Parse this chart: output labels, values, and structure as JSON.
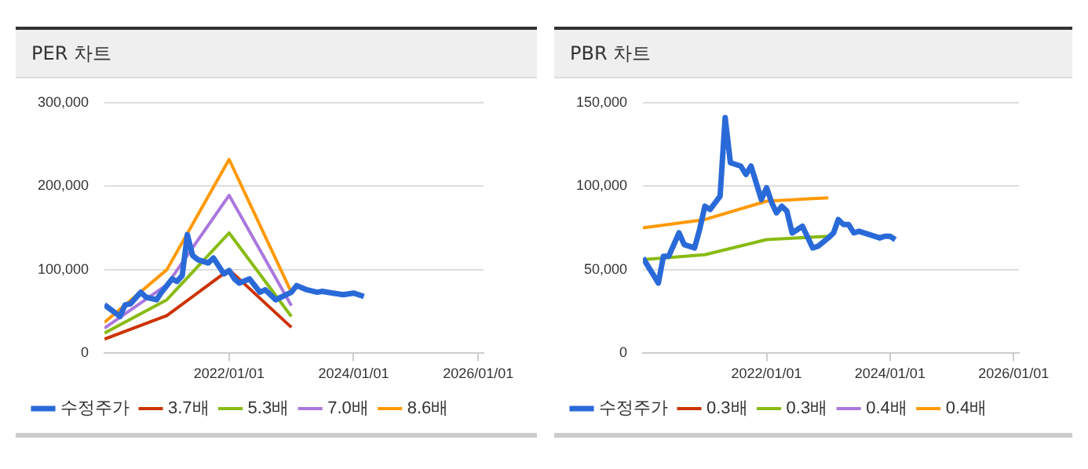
{
  "chart_data": [
    {
      "type": "line",
      "title": "PER 차트",
      "xlim": [
        "2020-01",
        "2026-02"
      ],
      "xticks": [
        {
          "value": "2022-01-01",
          "label": "2022/01/01"
        },
        {
          "value": "2024-01-01",
          "label": "2024/01/01"
        },
        {
          "value": "2026-01-01",
          "label": "2026/01/01"
        }
      ],
      "ylim": [
        0,
        300000
      ],
      "yticks": [
        0,
        {
          "value": 100000,
          "label": "100,000"
        },
        {
          "value": 200000,
          "label": "200,000"
        },
        {
          "value": 300000,
          "label": "300,000"
        }
      ],
      "grid": "y",
      "legend": "bottom",
      "series": [
        {
          "name": "수정주가",
          "color": "#2a6ad8",
          "x": [
            "2020-01",
            "2020-04",
            "2020-05",
            "2020-06",
            "2020-08",
            "2020-09",
            "2020-11",
            "2020-12",
            "2021-02",
            "2021-03",
            "2021-04",
            "2021-05",
            "2021-06",
            "2021-07",
            "2021-09",
            "2021-10",
            "2021-12",
            "2022-01",
            "2022-02",
            "2022-03",
            "2022-05",
            "2022-07",
            "2022-08",
            "2022-10",
            "2022-11",
            "2023-01",
            "2023-02",
            "2023-04",
            "2023-06",
            "2023-07",
            "2023-09",
            "2023-11",
            "2024-01",
            "2024-03"
          ],
          "values": [
            58000,
            44000,
            58000,
            59000,
            73000,
            67000,
            64000,
            73000,
            89000,
            86000,
            93000,
            142000,
            117000,
            112000,
            108000,
            114000,
            95000,
            99000,
            89000,
            84000,
            89000,
            73000,
            76000,
            64000,
            67000,
            73000,
            81000,
            76000,
            73000,
            74000,
            72000,
            70000,
            72000,
            68000
          ]
        },
        {
          "name": "3.7배",
          "color": "#cc3300",
          "x": [
            "2020-01",
            "2021-01",
            "2022-01",
            "2023-01"
          ],
          "values": [
            17000,
            45000,
            100000,
            31000
          ]
        },
        {
          "name": "5.3배",
          "color": "#88bb11",
          "x": [
            "2020-01",
            "2021-01",
            "2022-01",
            "2023-01"
          ],
          "values": [
            24000,
            64000,
            144000,
            44000
          ]
        },
        {
          "name": "7.0배",
          "color": "#aa77dd",
          "x": [
            "2020-01",
            "2021-01",
            "2022-01",
            "2023-01"
          ],
          "values": [
            30000,
            82000,
            189000,
            57000
          ]
        },
        {
          "name": "8.6배",
          "color": "#ff9900",
          "x": [
            "2020-01",
            "2021-01",
            "2022-01",
            "2023-01"
          ],
          "values": [
            37000,
            100000,
            232000,
            73000
          ]
        }
      ]
    },
    {
      "type": "line",
      "title": "PBR 차트",
      "xlim": [
        "2020-01",
        "2026-02"
      ],
      "xticks": [
        {
          "value": "2022-01-01",
          "label": "2022/01/01"
        },
        {
          "value": "2024-01-01",
          "label": "2024/01/01"
        },
        {
          "value": "2026-01-01",
          "label": "2026/01/01"
        }
      ],
      "ylim": [
        0,
        150000
      ],
      "yticks": [
        0,
        {
          "value": 50000,
          "label": "50,000"
        },
        {
          "value": 100000,
          "label": "100,000"
        },
        {
          "value": 150000,
          "label": "150,000"
        }
      ],
      "grid": "y",
      "legend": "bottom",
      "series": [
        {
          "name": "수정주가",
          "color": "#2a6ad8",
          "x": [
            "2020-01",
            "2020-04",
            "2020-05",
            "2020-06",
            "2020-08",
            "2020-09",
            "2020-11",
            "2020-12",
            "2021-01",
            "2021-02",
            "2021-04",
            "2021-05",
            "2021-06",
            "2021-08",
            "2021-09",
            "2021-10",
            "2021-12",
            "2022-01",
            "2022-02",
            "2022-03",
            "2022-04",
            "2022-05",
            "2022-06",
            "2022-08",
            "2022-10",
            "2022-11",
            "2023-01",
            "2023-02",
            "2023-03",
            "2023-04",
            "2023-05",
            "2023-06",
            "2023-07",
            "2023-09",
            "2023-11",
            "2023-12",
            "2024-01",
            "2024-02"
          ],
          "values": [
            57000,
            42000,
            58000,
            58000,
            72000,
            65000,
            63000,
            74000,
            88000,
            86000,
            94000,
            141000,
            114000,
            112000,
            107000,
            112000,
            92000,
            99000,
            90000,
            84000,
            88000,
            85000,
            72000,
            76000,
            63000,
            64000,
            69000,
            72000,
            80000,
            77000,
            77000,
            72000,
            73000,
            71000,
            69000,
            70000,
            70000,
            68000
          ]
        },
        {
          "name": "0.3배",
          "color": "#cc3300"
        },
        {
          "name": "0.3배",
          "color": "#88bb11",
          "x": [
            "2020-01",
            "2021-01",
            "2022-01",
            "2023-01"
          ],
          "values": [
            56000,
            59000,
            68000,
            70000
          ]
        },
        {
          "name": "0.4배",
          "color": "#aa77dd"
        },
        {
          "name": "0.4배",
          "color": "#ff9900",
          "x": [
            "2020-01",
            "2021-01",
            "2022-01",
            "2023-01"
          ],
          "values": [
            75000,
            80000,
            91000,
            93000
          ]
        }
      ]
    }
  ]
}
